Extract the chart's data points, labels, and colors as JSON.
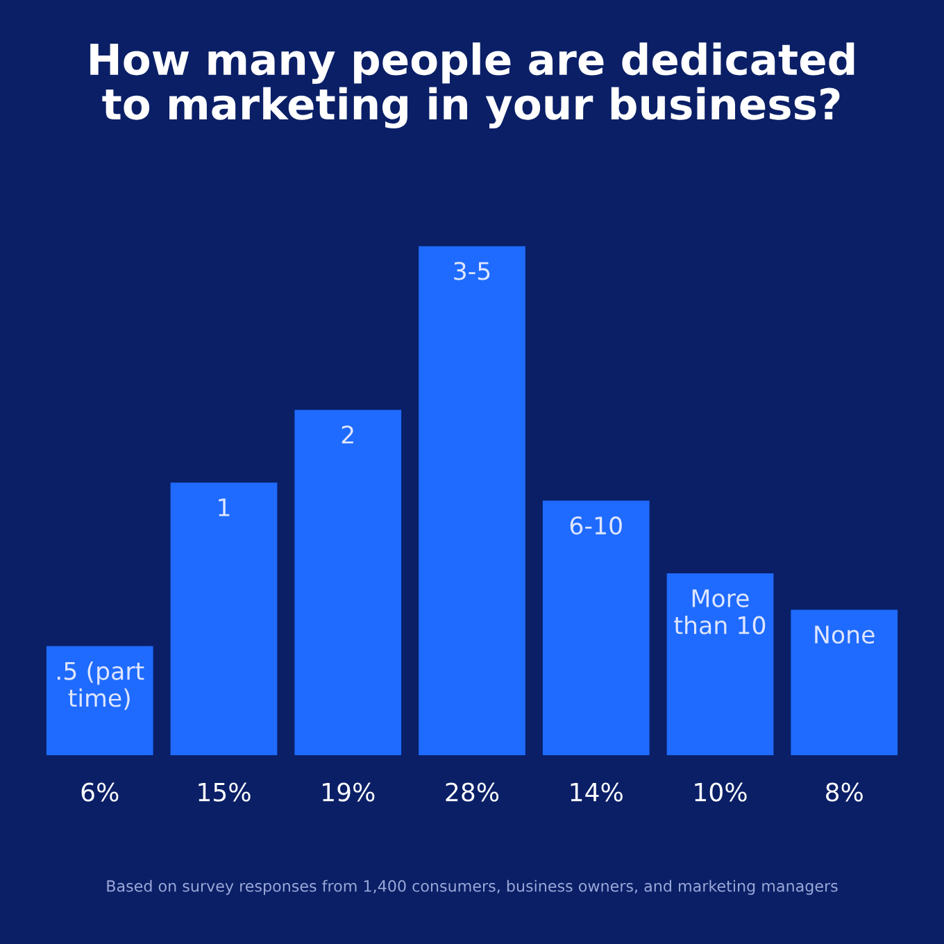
{
  "chart_data": {
    "type": "bar",
    "title": "How many people are dedicated\nto marketing in your business?",
    "categories": [
      ".5 (part\ntime)",
      "1",
      "2",
      "3-5",
      "6-10",
      "More\nthan 10",
      "None"
    ],
    "values": [
      6,
      15,
      19,
      28,
      14,
      10,
      8
    ],
    "value_labels": [
      "6%",
      "15%",
      "19%",
      "28%",
      "14%",
      "10%",
      "8%"
    ],
    "color": "#1f6bff",
    "annotations": [
      "Based on survey responses from 1,400 consumers, business owners, and marketing managers"
    ]
  }
}
